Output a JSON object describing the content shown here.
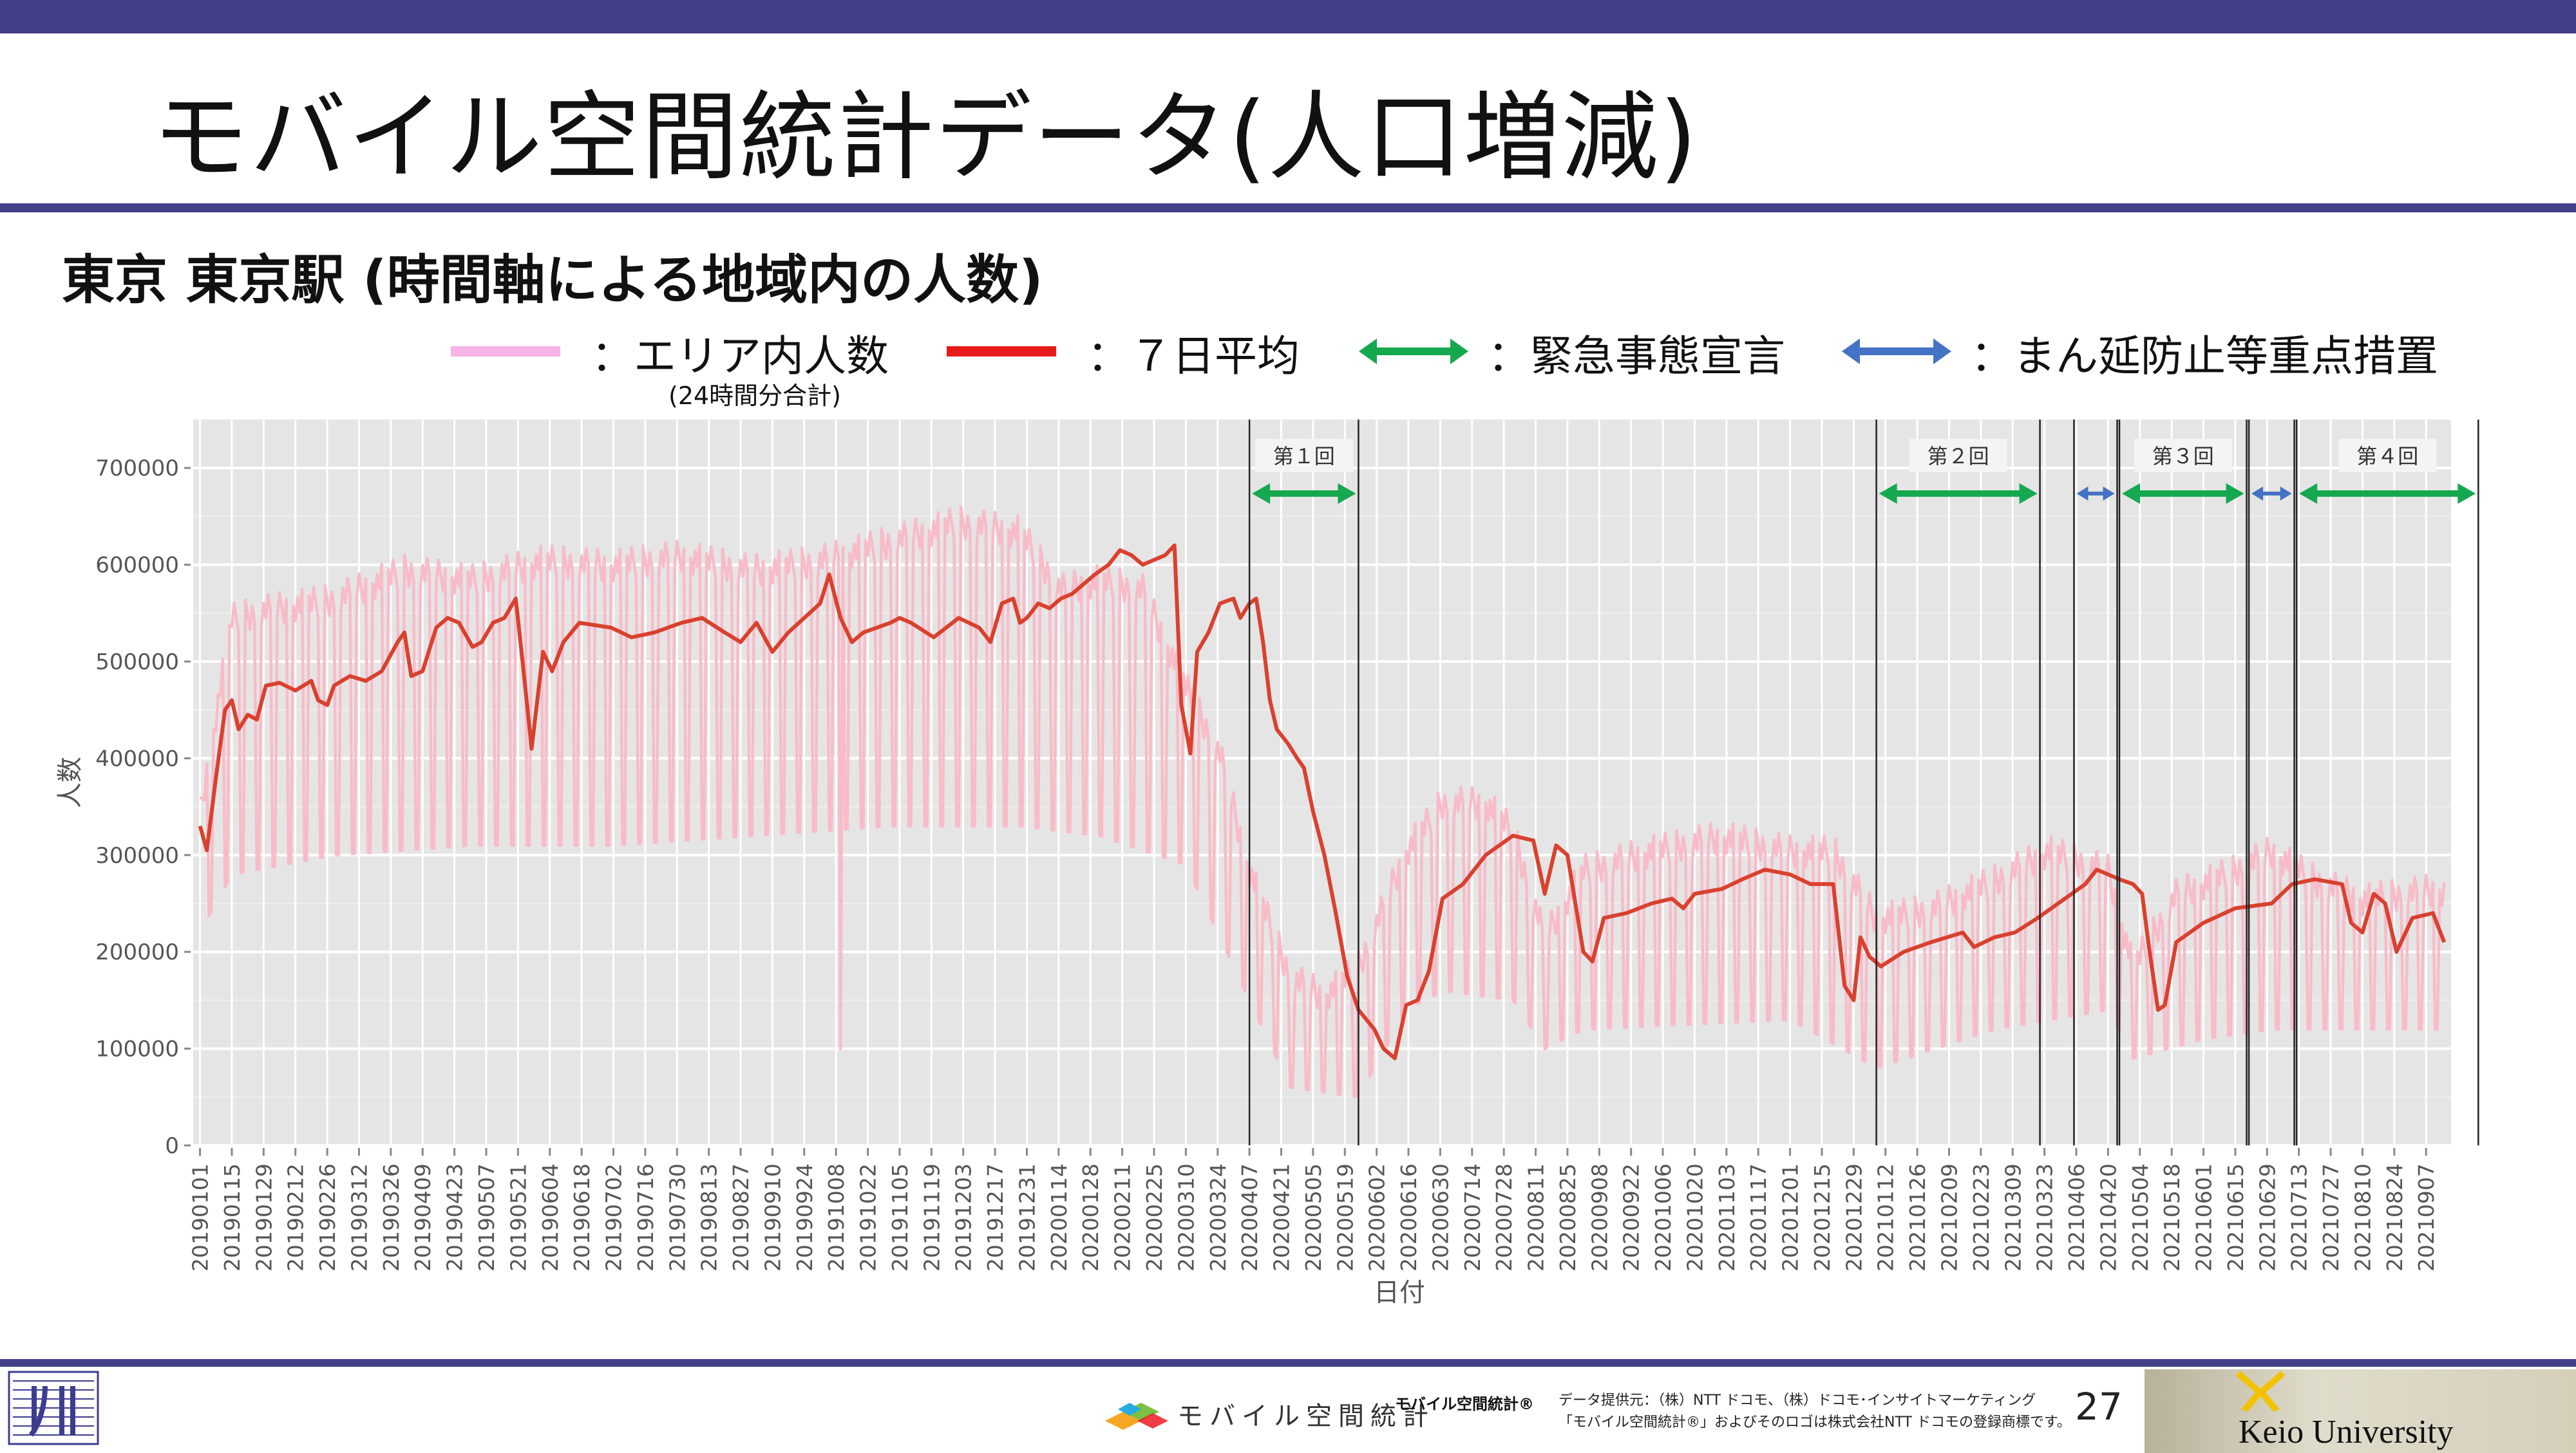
{
  "slide": {
    "title": "モバイル空間統計データ(人口増減)",
    "subtitle": "東京 東京駅 (時間軸による地域内の人数)",
    "page_number": "27",
    "colors": {
      "bar": "#433f88",
      "daily": "#f8bcc8",
      "avg": "#d9412f",
      "emergency": "#16a84e",
      "priority": "#4472c4",
      "plot_bg": "#e5e5e5"
    }
  },
  "legend": {
    "items": [
      {
        "label": "：エリア内人数",
        "color": "#f7b4e6",
        "icon": "line-icon"
      },
      {
        "label": "：７日平均",
        "color": "#e81b1b",
        "icon": "line-icon"
      },
      {
        "label": "：緊急事態宣言",
        "color": "#16a84e",
        "icon": "double-arrow-icon"
      },
      {
        "label": "：まん延防止等重点措置",
        "color": "#4472c4",
        "icon": "double-arrow-icon"
      }
    ],
    "note": "(24時間分合計)"
  },
  "footer": {
    "mobile_logo_text": "モバイル空間統計",
    "brand": "モバイル空間統計®",
    "credit_line1": "データ提供元：（株）NTT ドコモ、（株）ドコモ･インサイトマーケティング",
    "credit_line2": "「モバイル空間統計®」およびそのロゴは株式会社NTT ドコモの登録商標です。",
    "university": "Keio University"
  },
  "chart_data": {
    "type": "line",
    "xlabel": "日付",
    "ylabel": "人数",
    "ylim": [
      0,
      750000
    ],
    "yticks": [
      0,
      100000,
      200000,
      300000,
      400000,
      500000,
      600000,
      700000
    ],
    "ytick_labels": [
      "0",
      "100000",
      "200000",
      "300000",
      "400000",
      "500000",
      "600000",
      "700000"
    ],
    "x_range": [
      "20190101",
      "20210915"
    ],
    "xtick_labels": [
      "20190101",
      "20190115",
      "20190129",
      "20190212",
      "20190226",
      "20190312",
      "20190326",
      "20190409",
      "20190423",
      "20190507",
      "20190521",
      "20190604",
      "20190618",
      "20190702",
      "20190716",
      "20190730",
      "20190813",
      "20190827",
      "20190910",
      "20190924",
      "20191008",
      "20191022",
      "20191105",
      "20191119",
      "20191203",
      "20191217",
      "20191231",
      "20200114",
      "20200128",
      "20200211",
      "20200225",
      "20200310",
      "20200324",
      "20200407",
      "20200421",
      "20200505",
      "20200519",
      "20200602",
      "20200616",
      "20200630",
      "20200714",
      "20200728",
      "20200811",
      "20200825",
      "20200908",
      "20200922",
      "20201006",
      "20201020",
      "20201103",
      "20201117",
      "20201201",
      "20201215",
      "20201229",
      "20210112",
      "20210126",
      "20210209",
      "20210223",
      "20210309",
      "20210323",
      "20210406",
      "20210420",
      "20210504",
      "20210518",
      "20210601",
      "20210615",
      "20210629",
      "20210713",
      "20210727",
      "20210810",
      "20210824",
      "20210907"
    ],
    "grid": true,
    "series": [
      {
        "name": "エリア内人数",
        "style": "daily",
        "weekday_values": [
          [
            "20190101",
            360000
          ],
          [
            "20190115",
            560000
          ],
          [
            "20190201",
            570000
          ],
          [
            "20190301",
            580000
          ],
          [
            "20190401",
            610000
          ],
          [
            "20190501",
            600000
          ],
          [
            "20190601",
            620000
          ],
          [
            "20190701",
            615000
          ],
          [
            "20190801",
            625000
          ],
          [
            "20190901",
            610000
          ],
          [
            "20191001",
            620000
          ],
          [
            "20191101",
            640000
          ],
          [
            "20191201",
            660000
          ],
          [
            "20191228",
            650000
          ],
          [
            "20200115",
            590000
          ],
          [
            "20200201",
            600000
          ],
          [
            "20200220",
            590000
          ],
          [
            "20200310",
            490000
          ],
          [
            "20200325",
            420000
          ],
          [
            "20200407",
            300000
          ],
          [
            "20200425",
            190000
          ],
          [
            "20200510",
            170000
          ],
          [
            "20200525",
            200000
          ],
          [
            "20200615",
            320000
          ],
          [
            "20200701",
            370000
          ],
          [
            "20200720",
            370000
          ],
          [
            "20200801",
            340000
          ],
          [
            "20200815",
            230000
          ],
          [
            "20200901",
            300000
          ],
          [
            "20201001",
            320000
          ],
          [
            "20201101",
            335000
          ],
          [
            "20201201",
            320000
          ],
          [
            "20201220",
            320000
          ],
          [
            "20210108",
            250000
          ],
          [
            "20210201",
            260000
          ],
          [
            "20210301",
            290000
          ],
          [
            "20210325",
            320000
          ],
          [
            "20210420",
            300000
          ],
          [
            "20210501",
            200000
          ],
          [
            "20210520",
            275000
          ],
          [
            "20210615",
            300000
          ],
          [
            "20210701",
            320000
          ],
          [
            "20210720",
            290000
          ],
          [
            "20210810",
            270000
          ],
          [
            "20210910",
            280000
          ]
        ],
        "weekend_values": [
          [
            "20190101",
            220000
          ],
          [
            "20190115",
            280000
          ],
          [
            "20190301",
            300000
          ],
          [
            "20190501",
            310000
          ],
          [
            "20190701",
            310000
          ],
          [
            "20190901",
            320000
          ],
          [
            "20191101",
            330000
          ],
          [
            "20191228",
            330000
          ],
          [
            "20200201",
            320000
          ],
          [
            "20200310",
            290000
          ],
          [
            "20200407",
            150000
          ],
          [
            "20200425",
            60000
          ],
          [
            "20200525",
            50000
          ],
          [
            "20200615",
            140000
          ],
          [
            "20200701",
            160000
          ],
          [
            "20200801",
            150000
          ],
          [
            "20200815",
            100000
          ],
          [
            "20200901",
            120000
          ],
          [
            "20201201",
            130000
          ],
          [
            "20210108",
            80000
          ],
          [
            "20210301",
            120000
          ],
          [
            "20210420",
            140000
          ],
          [
            "20210501",
            90000
          ],
          [
            "20210601",
            110000
          ],
          [
            "20210701",
            120000
          ],
          [
            "20210910",
            120000
          ]
        ],
        "annotation_dip": [
          [
            "20191010",
            100000
          ]
        ]
      },
      {
        "name": "7日平均",
        "style": "average",
        "values": [
          [
            "20190101",
            330000
          ],
          [
            "20190104",
            305000
          ],
          [
            "20190108",
            380000
          ],
          [
            "20190112",
            450000
          ],
          [
            "20190115",
            460000
          ],
          [
            "20190118",
            430000
          ],
          [
            "20190122",
            445000
          ],
          [
            "20190126",
            440000
          ],
          [
            "20190130",
            475000
          ],
          [
            "20190205",
            478000
          ],
          [
            "20190212",
            470000
          ],
          [
            "20190219",
            480000
          ],
          [
            "20190222",
            460000
          ],
          [
            "20190226",
            455000
          ],
          [
            "20190301",
            475000
          ],
          [
            "20190308",
            485000
          ],
          [
            "20190315",
            480000
          ],
          [
            "20190322",
            490000
          ],
          [
            "20190329",
            520000
          ],
          [
            "20190401",
            530000
          ],
          [
            "20190404",
            485000
          ],
          [
            "20190409",
            490000
          ],
          [
            "20190415",
            535000
          ],
          [
            "20190420",
            545000
          ],
          [
            "20190425",
            540000
          ],
          [
            "20190501",
            515000
          ],
          [
            "20190505",
            520000
          ],
          [
            "20190510",
            540000
          ],
          [
            "20190515",
            545000
          ],
          [
            "20190520",
            565000
          ],
          [
            "20190523",
            500000
          ],
          [
            "20190527",
            410000
          ],
          [
            "20190601",
            510000
          ],
          [
            "20190605",
            490000
          ],
          [
            "20190610",
            520000
          ],
          [
            "20190617",
            540000
          ],
          [
            "20190701",
            535000
          ],
          [
            "20190710",
            525000
          ],
          [
            "20190720",
            530000
          ],
          [
            "20190801",
            540000
          ],
          [
            "20190810",
            545000
          ],
          [
            "20190820",
            530000
          ],
          [
            "20190827",
            520000
          ],
          [
            "20190903",
            540000
          ],
          [
            "20190910",
            510000
          ],
          [
            "20190917",
            530000
          ],
          [
            "20190924",
            545000
          ],
          [
            "20191001",
            560000
          ],
          [
            "20191005",
            590000
          ],
          [
            "20191010",
            545000
          ],
          [
            "20191015",
            520000
          ],
          [
            "20191020",
            530000
          ],
          [
            "20191101",
            540000
          ],
          [
            "20191105",
            545000
          ],
          [
            "20191110",
            540000
          ],
          [
            "20191120",
            525000
          ],
          [
            "20191201",
            545000
          ],
          [
            "20191210",
            535000
          ],
          [
            "20191215",
            520000
          ],
          [
            "20191220",
            560000
          ],
          [
            "20191225",
            565000
          ],
          [
            "20191228",
            540000
          ],
          [
            "20191231",
            545000
          ],
          [
            "20200105",
            560000
          ],
          [
            "20200110",
            555000
          ],
          [
            "20200115",
            565000
          ],
          [
            "20200120",
            570000
          ],
          [
            "20200125",
            580000
          ],
          [
            "20200130",
            590000
          ],
          [
            "20200205",
            600000
          ],
          [
            "20200210",
            615000
          ],
          [
            "20200215",
            610000
          ],
          [
            "20200220",
            600000
          ],
          [
            "20200225",
            605000
          ],
          [
            "20200301",
            610000
          ],
          [
            "20200305",
            620000
          ],
          [
            "20200308",
            455000
          ],
          [
            "20200312",
            405000
          ],
          [
            "20200315",
            510000
          ],
          [
            "20200320",
            530000
          ],
          [
            "20200325",
            560000
          ],
          [
            "20200331",
            565000
          ],
          [
            "20200403",
            545000
          ],
          [
            "20200407",
            560000
          ],
          [
            "20200410",
            565000
          ],
          [
            "20200413",
            520000
          ],
          [
            "20200416",
            460000
          ],
          [
            "20200419",
            430000
          ],
          [
            "20200424",
            415000
          ],
          [
            "20200428",
            400000
          ],
          [
            "20200501",
            390000
          ],
          [
            "20200505",
            345000
          ],
          [
            "20200510",
            300000
          ],
          [
            "20200515",
            240000
          ],
          [
            "20200520",
            175000
          ],
          [
            "20200525",
            140000
          ],
          [
            "20200601",
            120000
          ],
          [
            "20200605",
            100000
          ],
          [
            "20200610",
            90000
          ],
          [
            "20200615",
            145000
          ],
          [
            "20200620",
            150000
          ],
          [
            "20200625",
            180000
          ],
          [
            "20200701",
            255000
          ],
          [
            "20200710",
            270000
          ],
          [
            "20200720",
            300000
          ],
          [
            "20200801",
            320000
          ],
          [
            "20200810",
            315000
          ],
          [
            "20200815",
            260000
          ],
          [
            "20200820",
            310000
          ],
          [
            "20200825",
            300000
          ],
          [
            "20200901",
            200000
          ],
          [
            "20200905",
            190000
          ],
          [
            "20200910",
            235000
          ],
          [
            "20200920",
            240000
          ],
          [
            "20201001",
            250000
          ],
          [
            "20201010",
            255000
          ],
          [
            "20201015",
            245000
          ],
          [
            "20201020",
            260000
          ],
          [
            "20201101",
            265000
          ],
          [
            "20201110",
            275000
          ],
          [
            "20201120",
            285000
          ],
          [
            "20201201",
            280000
          ],
          [
            "20201210",
            270000
          ],
          [
            "20201220",
            270000
          ],
          [
            "20201225",
            165000
          ],
          [
            "20201229",
            150000
          ],
          [
            "20210101",
            215000
          ],
          [
            "20210105",
            195000
          ],
          [
            "20210110",
            185000
          ],
          [
            "20210120",
            200000
          ],
          [
            "20210201",
            210000
          ],
          [
            "20210215",
            220000
          ],
          [
            "20210220",
            205000
          ],
          [
            "20210301",
            215000
          ],
          [
            "20210310",
            220000
          ],
          [
            "20210320",
            235000
          ],
          [
            "20210401",
            255000
          ],
          [
            "20210410",
            270000
          ],
          [
            "20210415",
            285000
          ],
          [
            "20210425",
            275000
          ],
          [
            "20210501",
            270000
          ],
          [
            "20210505",
            260000
          ],
          [
            "20210508",
            205000
          ],
          [
            "20210512",
            140000
          ],
          [
            "20210515",
            145000
          ],
          [
            "20210520",
            210000
          ],
          [
            "20210601",
            230000
          ],
          [
            "20210615",
            245000
          ],
          [
            "20210701",
            250000
          ],
          [
            "20210710",
            270000
          ],
          [
            "20210720",
            275000
          ],
          [
            "20210801",
            270000
          ],
          [
            "20210805",
            230000
          ],
          [
            "20210810",
            220000
          ],
          [
            "20210815",
            260000
          ],
          [
            "20210820",
            250000
          ],
          [
            "20210825",
            200000
          ],
          [
            "20210901",
            235000
          ],
          [
            "20210910",
            240000
          ],
          [
            "20210915",
            210000
          ]
        ]
      }
    ],
    "periods": [
      {
        "label": "第１回",
        "type": "emergency",
        "start": "20200407",
        "end": "20200525"
      },
      {
        "label": "第２回",
        "type": "emergency",
        "start": "20210108",
        "end": "20210321"
      },
      {
        "type": "priority",
        "start": "20210405",
        "end": "20210424"
      },
      {
        "label": "第３回",
        "type": "emergency",
        "start": "20210425",
        "end": "20210620"
      },
      {
        "type": "priority",
        "start": "20210621",
        "end": "20210711"
      },
      {
        "label": "第４回",
        "type": "emergency",
        "start": "20210712",
        "end": "20210930"
      }
    ]
  }
}
